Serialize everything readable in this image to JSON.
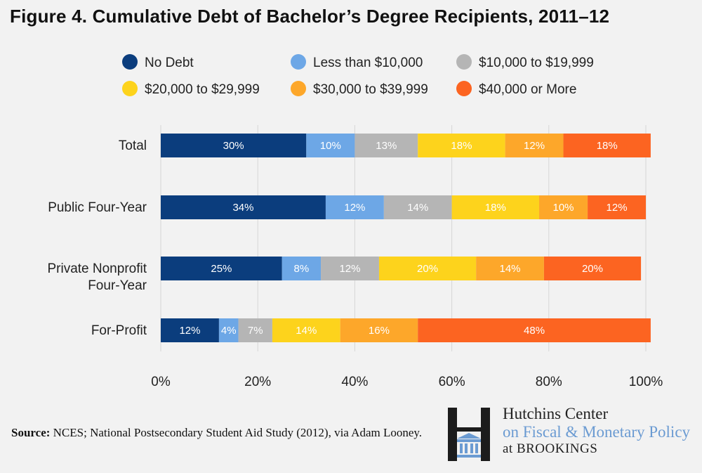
{
  "chart_data": {
    "type": "bar",
    "orientation": "horizontal-stacked",
    "title": "Figure 4. Cumulative Debt of Bachelor’s Degree Recipients, 2011–12",
    "categories": [
      {
        "lines": [
          "Total"
        ]
      },
      {
        "lines": [
          "Public Four-Year"
        ]
      },
      {
        "lines": [
          "Private Nonprofit",
          "Four-Year"
        ]
      },
      {
        "lines": [
          "For-Profit"
        ]
      }
    ],
    "series": [
      {
        "name": "No Debt",
        "color": "#0b3d7d",
        "values": [
          30,
          34,
          25,
          12
        ]
      },
      {
        "name": "Less than $10,000",
        "color": "#6da7e6",
        "values": [
          10,
          12,
          8,
          4
        ]
      },
      {
        "name": "$10,000 to $19,999",
        "color": "#b5b5b5",
        "values": [
          13,
          14,
          12,
          7
        ]
      },
      {
        "name": "$20,000 to $29,999",
        "color": "#fdd31c",
        "values": [
          18,
          18,
          20,
          14
        ]
      },
      {
        "name": "$30,000 to $39,999",
        "color": "#fda72a",
        "values": [
          12,
          10,
          14,
          16
        ]
      },
      {
        "name": "$40,000 or More",
        "color": "#fc6421",
        "values": [
          18,
          12,
          20,
          48
        ]
      }
    ],
    "xlim": [
      0,
      100
    ],
    "xticks": [
      "0%",
      "20%",
      "40%",
      "60%",
      "80%",
      "100%"
    ],
    "xtick_values": [
      0,
      20,
      40,
      60,
      80,
      100
    ],
    "grid": "vertical",
    "legend": "top"
  },
  "source": {
    "label": "Source:",
    "text": "NCES; National Postsecondary Student Aid Study (2012), via Adam Looney."
  },
  "logo": {
    "line1": "Hutchins Center",
    "line2": "on Fiscal & Monetary Policy",
    "line3": "at BROOKINGS",
    "colors": {
      "dark": "#222222",
      "accent": "#6b9bd2"
    }
  }
}
